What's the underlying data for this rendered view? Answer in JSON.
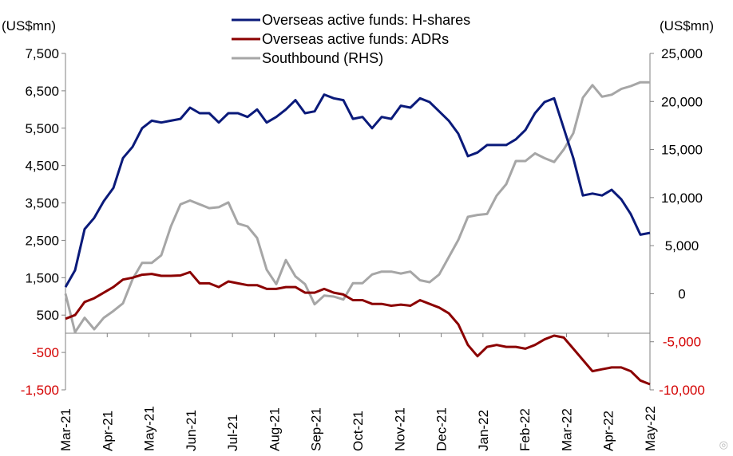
{
  "chart_data": {
    "type": "line",
    "left_unit": "(US$mn)",
    "right_unit": "(US$mn)",
    "y_left": {
      "range": [
        -1500,
        7500
      ],
      "ticks": [
        7500,
        6500,
        5500,
        4500,
        3500,
        2500,
        1500,
        500,
        -500,
        -1500
      ],
      "tick_labels": [
        "7,500",
        "6,500",
        "5,500",
        "4,500",
        "3,500",
        "2,500",
        "1,500",
        "500",
        "-500",
        "-1,500"
      ]
    },
    "y_right": {
      "range": [
        -10000,
        25000
      ],
      "ticks": [
        25000,
        20000,
        15000,
        10000,
        5000,
        0,
        -5000,
        -10000
      ],
      "tick_labels": [
        "25,000",
        "20,000",
        "15,000",
        "10,000",
        "5,000",
        "0",
        "-5,000",
        "-10,000"
      ]
    },
    "x_labels": [
      "Mar-21",
      "Apr-21",
      "May-21",
      "Jun-21",
      "Jul-21",
      "Aug-21",
      "Sep-21",
      "Oct-21",
      "Nov-21",
      "Dec-21",
      "Jan-22",
      "Feb-22",
      "Mar-22",
      "Apr-22",
      "May-22"
    ],
    "grid": false,
    "legend_position": "top-center",
    "colors": {
      "negative_tick": "#d40000",
      "axis": "#808080"
    },
    "series": [
      {
        "name": "Overseas active funds: H-shares",
        "axis": "left",
        "color": "#0a1a7a",
        "values": [
          1250,
          1700,
          2800,
          3100,
          3550,
          3900,
          4700,
          5000,
          5500,
          5700,
          5650,
          5700,
          5750,
          6050,
          5900,
          5900,
          5650,
          5900,
          5900,
          5800,
          6000,
          5650,
          5800,
          6000,
          6250,
          5900,
          5950,
          6400,
          6300,
          6250,
          5750,
          5800,
          5500,
          5800,
          5750,
          6100,
          6050,
          6300,
          6200,
          5950,
          5700,
          5350,
          4750,
          4850,
          5050,
          5050,
          5050,
          5200,
          5450,
          5900,
          6200,
          6300,
          5500,
          4700,
          3700,
          3750,
          3700,
          3850,
          3600,
          3200,
          2650,
          2700
        ]
      },
      {
        "name": "Overseas active funds: ADRs",
        "axis": "left",
        "color": "#8b0000",
        "values": [
          400,
          500,
          850,
          950,
          1100,
          1250,
          1450,
          1500,
          1580,
          1600,
          1550,
          1550,
          1560,
          1650,
          1350,
          1350,
          1250,
          1400,
          1350,
          1300,
          1300,
          1200,
          1200,
          1250,
          1250,
          1100,
          1100,
          1200,
          1100,
          1050,
          900,
          900,
          800,
          800,
          750,
          780,
          750,
          900,
          800,
          700,
          550,
          250,
          -300,
          -600,
          -350,
          -300,
          -350,
          -350,
          -400,
          -300,
          -150,
          -50,
          -100,
          -400,
          -700,
          -1000,
          -950,
          -900,
          -900,
          -1000,
          -1250,
          -1350
        ]
      },
      {
        "name": "Southbound (RHS)",
        "axis": "right",
        "color": "#a6a6a6",
        "values": [
          0,
          -4000,
          -2500,
          -3700,
          -2500,
          -1800,
          -1000,
          1500,
          3200,
          3200,
          4000,
          7000,
          9300,
          9700,
          9300,
          8900,
          9000,
          9500,
          7300,
          7000,
          5800,
          2500,
          1000,
          3500,
          1800,
          1000,
          -1100,
          -200,
          -300,
          -600,
          1100,
          1100,
          2000,
          2300,
          2300,
          2100,
          2300,
          1400,
          1200,
          2000,
          3800,
          5600,
          8000,
          8200,
          8300,
          10200,
          11400,
          13800,
          13800,
          14600,
          14100,
          13700,
          15000,
          16700,
          20400,
          21700,
          20500,
          20700,
          21300,
          21600,
          22000,
          22000
        ]
      }
    ]
  }
}
